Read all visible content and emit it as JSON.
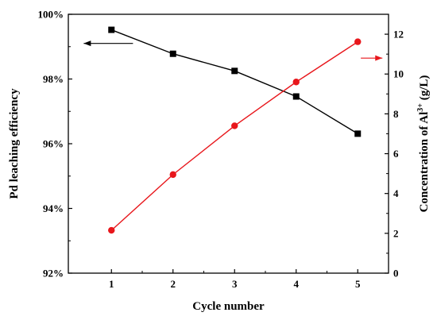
{
  "chart_data": {
    "type": "line",
    "x": [
      1,
      2,
      3,
      4,
      5
    ],
    "xlabel": "Cycle number",
    "xlim": [
      0.3,
      5.5
    ],
    "x_ticks": [
      "1",
      "2",
      "3",
      "4",
      "5"
    ],
    "series": [
      {
        "values": [
          99.52,
          98.78,
          98.25,
          97.46,
          96.31
        ],
        "axis": "left",
        "marker": "square",
        "color": "#000000"
      },
      {
        "values": [
          2.15,
          4.95,
          7.4,
          9.6,
          11.62
        ],
        "axis": "right",
        "marker": "circle",
        "color": "#e8161b"
      }
    ],
    "y_left": {
      "label": "Pd leaching efficiency",
      "range": [
        92,
        100
      ],
      "ticks": [
        "92%",
        "94%",
        "96%",
        "98%",
        "100%"
      ],
      "tick_values": [
        92,
        94,
        96,
        98,
        100
      ]
    },
    "y_right": {
      "label_main": "Concentration of Al",
      "label_sup": "3+",
      "label_tail": " (g/L)",
      "range": [
        0,
        13
      ],
      "ticks": [
        "0",
        "2",
        "4",
        "6",
        "8",
        "10",
        "12"
      ],
      "tick_values": [
        0,
        2,
        4,
        6,
        8,
        10,
        12
      ]
    },
    "annotations": [
      {
        "type": "arrow",
        "direction": "left",
        "color": "#000000",
        "x_from": 1.35,
        "x_to": 0.55,
        "y": 99.1,
        "axis": "left"
      },
      {
        "type": "arrow",
        "direction": "right",
        "color": "#e8161b",
        "x_from": 5.05,
        "x_to": 5.4,
        "y": 10.8,
        "axis": "right"
      }
    ],
    "grid": false,
    "legend": "none"
  }
}
